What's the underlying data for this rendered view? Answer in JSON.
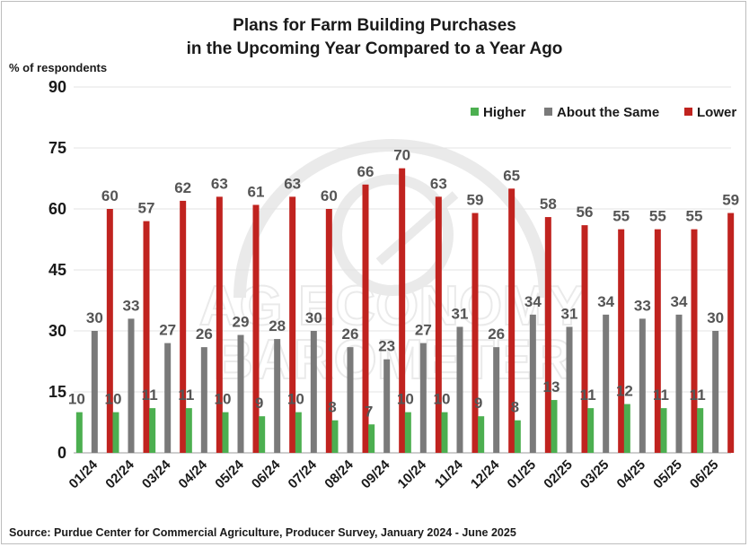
{
  "chart_data": {
    "type": "bar",
    "title_lines": [
      "Plans for Farm Building Purchases",
      "in the Upcoming Year Compared to a Year Ago"
    ],
    "ylabel": "% of respondents",
    "xlabel": "",
    "ylim": [
      0,
      90
    ],
    "yticks": [
      0,
      15,
      30,
      45,
      60,
      75,
      90
    ],
    "grid": true,
    "legend_position": "top-right",
    "categories": [
      "01/24",
      "02/24",
      "03/24",
      "04/24",
      "05/24",
      "06/24",
      "07/24",
      "08/24",
      "09/24",
      "10/24",
      "11/24",
      "12/24",
      "01/25",
      "02/25",
      "03/25",
      "04/25",
      "05/25",
      "06/25"
    ],
    "series": [
      {
        "name": "Higher",
        "color": "#4caf50",
        "values": [
          10,
          10,
          11,
          11,
          10,
          9,
          10,
          8,
          7,
          10,
          10,
          9,
          8,
          13,
          11,
          12,
          11,
          11
        ]
      },
      {
        "name": "About the Same",
        "color": "#7a7a7a",
        "values": [
          30,
          33,
          27,
          26,
          29,
          28,
          30,
          26,
          23,
          27,
          31,
          26,
          34,
          31,
          34,
          33,
          34,
          30
        ]
      },
      {
        "name": "Lower",
        "color": "#c0231f",
        "values": [
          60,
          57,
          62,
          63,
          61,
          63,
          60,
          66,
          70,
          63,
          59,
          65,
          58,
          56,
          55,
          55,
          55,
          59
        ]
      }
    ],
    "source": "Source: Purdue Center for Commercial Agriculture, Producer Survey, January 2024 - June 2025"
  }
}
